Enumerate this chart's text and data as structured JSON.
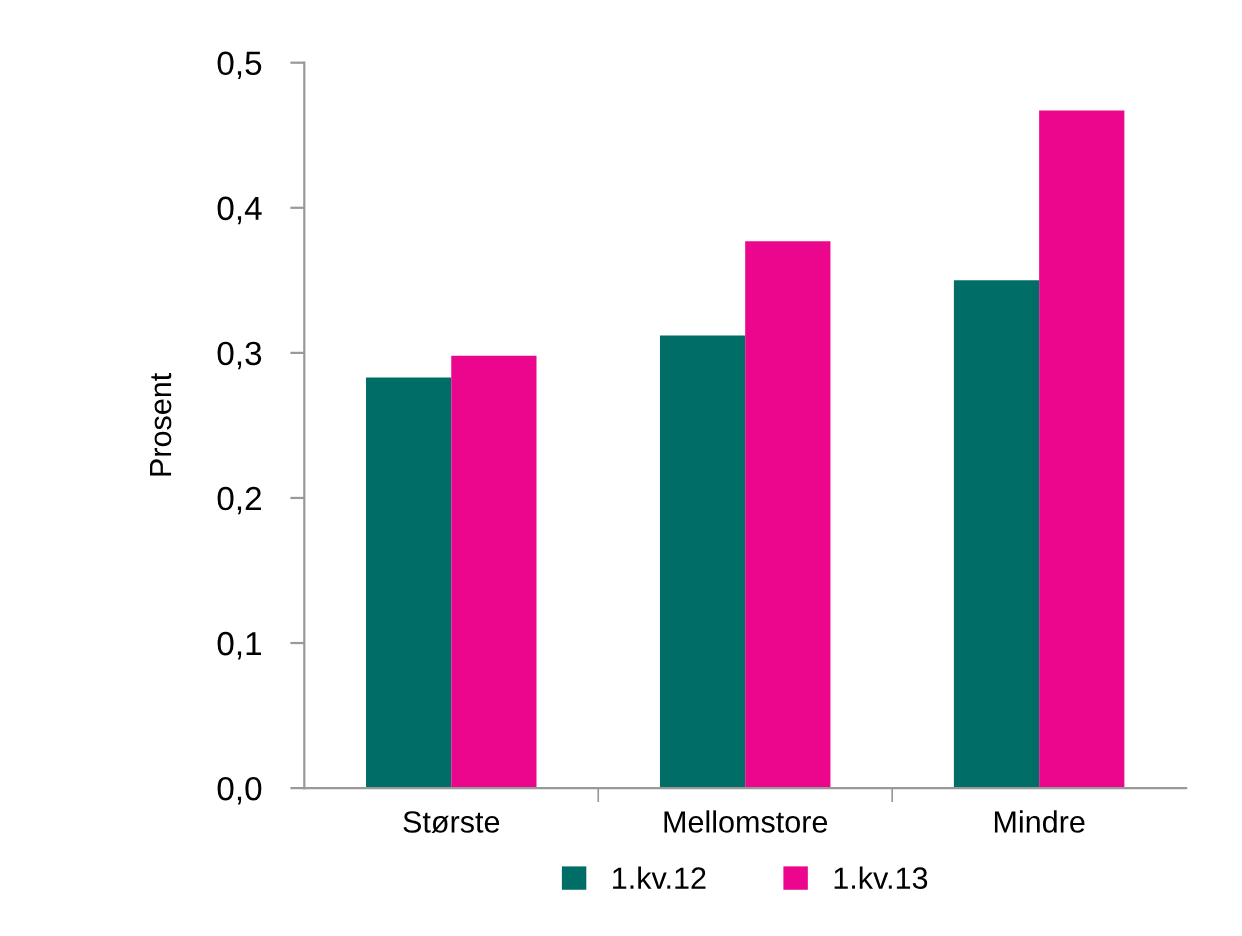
{
  "chart_data": {
    "type": "bar",
    "ylabel": "Prosent",
    "categories": [
      "Største",
      "Mellomstore",
      "Mindre"
    ],
    "series": [
      {
        "name": "1.kv.12",
        "color": "#006e66",
        "values": [
          0.283,
          0.312,
          0.35
        ]
      },
      {
        "name": "1.kv.13",
        "color": "#ec068d",
        "values": [
          0.298,
          0.377,
          0.467
        ]
      }
    ],
    "ylim": [
      0,
      0.5
    ],
    "yticks": [
      {
        "value": 0,
        "label": "0,0"
      },
      {
        "value": 0.1,
        "label": "0,1"
      },
      {
        "value": 0.2,
        "label": "0,2"
      },
      {
        "value": 0.3,
        "label": "0,3"
      },
      {
        "value": 0.4,
        "label": "0,4"
      },
      {
        "value": 0.5,
        "label": "0,5"
      }
    ],
    "grid": false,
    "legend": "bottom"
  }
}
